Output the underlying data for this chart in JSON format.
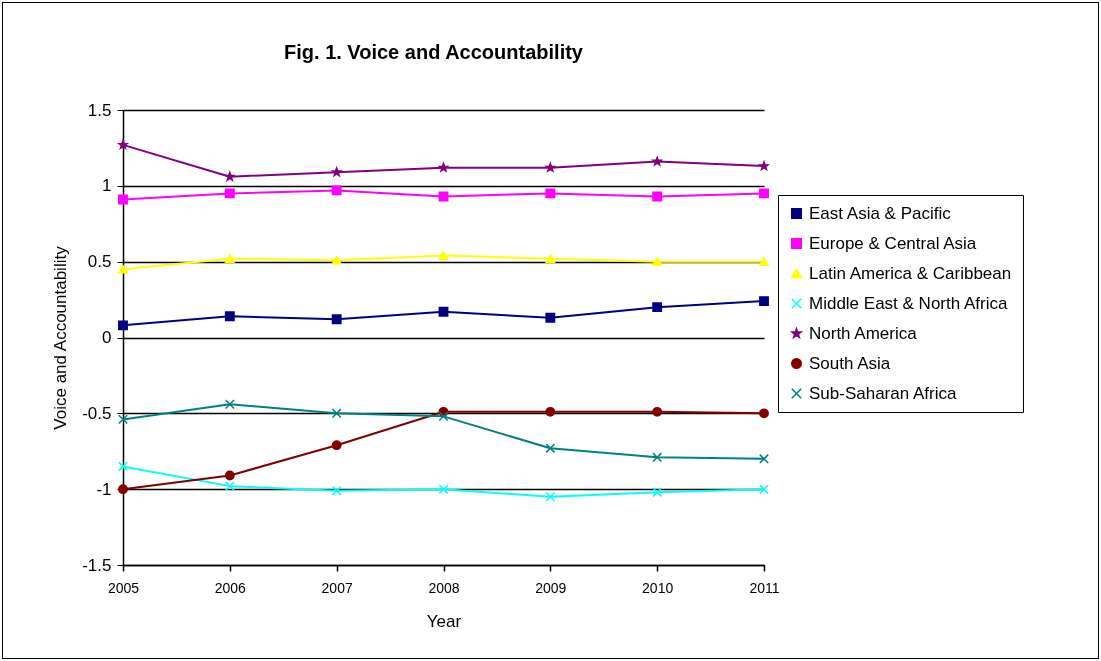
{
  "chart_data": {
    "type": "line",
    "title": "Fig. 1. Voice and Accountability",
    "xlabel": "Year",
    "ylabel": "Voice and Accountability",
    "x": [
      2005,
      2006,
      2007,
      2008,
      2009,
      2010,
      2011
    ],
    "xlim": [
      2005,
      2011
    ],
    "xticks": [
      2005,
      2006,
      2007,
      2008,
      2009,
      2010,
      2011
    ],
    "ylim": [
      -1.5,
      1.5
    ],
    "yticks": [
      -1.5,
      -1,
      -0.5,
      0,
      0.5,
      1,
      1.5
    ],
    "grid": "y",
    "legend": "right",
    "series": [
      {
        "name": "East Asia & Pacific",
        "color": "#000080",
        "marker": "square",
        "values": [
          0.08,
          0.14,
          0.12,
          0.17,
          0.13,
          0.2,
          0.24
        ]
      },
      {
        "name": "Europe & Central Asia",
        "color": "#ff00ff",
        "marker": "square",
        "values": [
          0.91,
          0.95,
          0.97,
          0.93,
          0.95,
          0.93,
          0.95
        ]
      },
      {
        "name": "Latin America & Caribbean",
        "color": "#ffff00",
        "marker": "triangle",
        "values": [
          0.45,
          0.52,
          0.51,
          0.54,
          0.52,
          0.5,
          0.5
        ]
      },
      {
        "name": "Middle East & North Africa",
        "color": "#00ffff",
        "marker": "cross",
        "values": [
          -0.85,
          -0.98,
          -1.01,
          -1.0,
          -1.05,
          -1.02,
          -1.0
        ]
      },
      {
        "name": "North America",
        "color": "#800080",
        "marker": "star",
        "values": [
          1.27,
          1.06,
          1.09,
          1.12,
          1.12,
          1.16,
          1.13
        ]
      },
      {
        "name": "South Asia",
        "color": "#800000",
        "marker": "circle",
        "values": [
          -1.0,
          -0.91,
          -0.71,
          -0.49,
          -0.49,
          -0.49,
          -0.5
        ]
      },
      {
        "name": "Sub-Saharan Africa",
        "color": "#008080",
        "marker": "cross",
        "values": [
          -0.54,
          -0.44,
          -0.5,
          -0.52,
          -0.73,
          -0.79,
          -0.8
        ]
      }
    ]
  }
}
